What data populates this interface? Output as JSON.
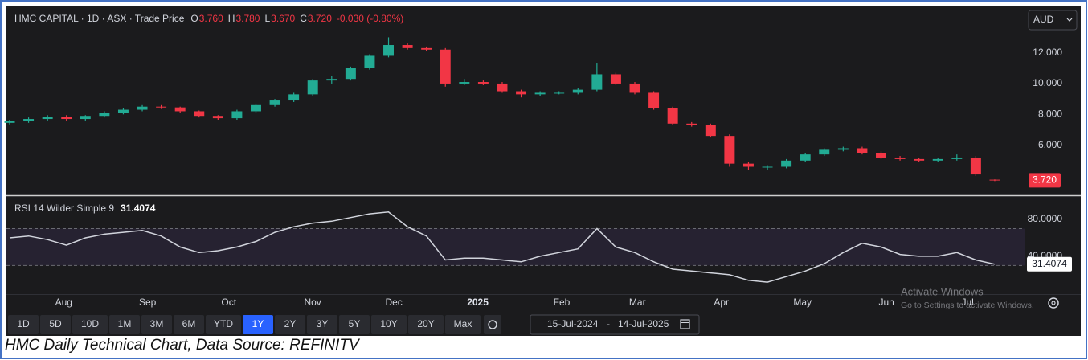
{
  "chart_data": [
    {
      "type": "candlestick",
      "title": "HMC CAPITAL · 1D · ASX · Trade Price",
      "ohlc_legend": [
        {
          "key": "O",
          "value": "3.760"
        },
        {
          "key": "H",
          "value": "3.780"
        },
        {
          "key": "L",
          "value": "3.670"
        },
        {
          "key": "C",
          "value": "3.720"
        }
      ],
      "change": "-0.030 (-0.80%)",
      "currency": "AUD",
      "last_price_label": "3.720",
      "up_color": "#22ab94",
      "down_color": "#f23645",
      "x": [
        "2024-07-15",
        "2024-07-22",
        "2024-07-29",
        "2024-08-05",
        "2024-08-12",
        "2024-08-19",
        "2024-08-26",
        "2024-09-02",
        "2024-09-09",
        "2024-09-16",
        "2024-09-23",
        "2024-09-30",
        "2024-10-07",
        "2024-10-14",
        "2024-10-21",
        "2024-10-28",
        "2024-11-04",
        "2024-11-11",
        "2024-11-18",
        "2024-11-25",
        "2024-12-02",
        "2024-12-09",
        "2024-12-16",
        "2024-12-23",
        "2024-12-30",
        "2025-01-06",
        "2025-01-13",
        "2025-01-20",
        "2025-01-27",
        "2025-02-03",
        "2025-02-10",
        "2025-02-17",
        "2025-02-24",
        "2025-03-03",
        "2025-03-10",
        "2025-03-17",
        "2025-03-24",
        "2025-03-31",
        "2025-04-07",
        "2025-04-14",
        "2025-04-21",
        "2025-04-28",
        "2025-05-05",
        "2025-05-12",
        "2025-05-19",
        "2025-05-26",
        "2025-06-02",
        "2025-06-09",
        "2025-06-16",
        "2025-06-23",
        "2025-06-30",
        "2025-07-07",
        "2025-07-14"
      ],
      "open": [
        7.45,
        7.55,
        7.7,
        7.85,
        7.7,
        7.9,
        8.1,
        8.3,
        8.5,
        8.45,
        8.2,
        7.9,
        7.75,
        8.2,
        8.6,
        8.9,
        9.3,
        10.2,
        10.3,
        11.0,
        11.8,
        12.5,
        12.3,
        12.2,
        10.0,
        10.1,
        10.0,
        9.5,
        9.3,
        9.4,
        9.4,
        9.6,
        10.6,
        10.0,
        9.4,
        8.4,
        7.4,
        7.3,
        6.6,
        4.8,
        4.6,
        4.6,
        5.0,
        5.4,
        5.7,
        5.8,
        5.5,
        5.2,
        5.1,
        5.0,
        5.1,
        5.2,
        3.76
      ],
      "high": [
        7.65,
        7.8,
        7.95,
        7.95,
        7.95,
        8.2,
        8.4,
        8.6,
        8.6,
        8.5,
        8.25,
        7.95,
        8.3,
        8.7,
        9.0,
        9.4,
        10.3,
        10.5,
        11.1,
        11.9,
        13.0,
        12.6,
        12.4,
        12.3,
        10.3,
        10.2,
        10.1,
        9.6,
        9.5,
        9.5,
        9.7,
        11.3,
        10.7,
        10.1,
        9.5,
        8.5,
        7.5,
        7.4,
        6.7,
        4.9,
        4.7,
        5.1,
        5.5,
        5.8,
        5.9,
        5.9,
        5.6,
        5.3,
        5.2,
        5.2,
        5.4,
        5.3,
        3.78
      ],
      "low": [
        7.35,
        7.45,
        7.6,
        7.6,
        7.6,
        7.8,
        8.0,
        8.2,
        8.35,
        8.1,
        7.8,
        7.65,
        7.65,
        8.1,
        8.5,
        8.8,
        9.2,
        10.0,
        10.2,
        10.9,
        11.7,
        12.2,
        12.1,
        9.8,
        9.9,
        9.9,
        9.4,
        9.1,
        9.2,
        9.3,
        9.3,
        9.5,
        9.9,
        9.3,
        8.3,
        7.3,
        7.2,
        6.5,
        4.6,
        4.4,
        4.4,
        4.5,
        4.9,
        5.3,
        5.6,
        5.4,
        5.1,
        5.0,
        4.9,
        4.9,
        5.0,
        4.0,
        3.67
      ],
      "close": [
        7.55,
        7.7,
        7.85,
        7.7,
        7.9,
        8.1,
        8.3,
        8.5,
        8.45,
        8.2,
        7.9,
        7.75,
        8.2,
        8.6,
        8.9,
        9.3,
        10.2,
        10.3,
        11.0,
        11.8,
        12.5,
        12.3,
        12.2,
        10.0,
        10.1,
        10.0,
        9.5,
        9.3,
        9.4,
        9.4,
        9.6,
        10.6,
        10.0,
        9.4,
        8.4,
        7.4,
        7.3,
        6.6,
        4.8,
        4.6,
        4.6,
        5.0,
        5.4,
        5.7,
        5.8,
        5.5,
        5.2,
        5.1,
        5.0,
        5.1,
        5.2,
        4.1,
        3.72
      ],
      "xlim": [
        "2024-07-15",
        "2025-07-25"
      ],
      "ylim": [
        2.8,
        14.9
      ],
      "yticks": [
        {
          "value": 6,
          "label": "6.000"
        },
        {
          "value": 8,
          "label": "8.000"
        },
        {
          "value": 10,
          "label": "10.000"
        },
        {
          "value": 12,
          "label": "12.000"
        }
      ],
      "grid": false
    },
    {
      "type": "line",
      "title": "RSI 14 Wilder Simple 9",
      "x": [
        "2024-07-15",
        "2024-07-22",
        "2024-07-29",
        "2024-08-05",
        "2024-08-12",
        "2024-08-19",
        "2024-08-26",
        "2024-09-02",
        "2024-09-09",
        "2024-09-16",
        "2024-09-23",
        "2024-09-30",
        "2024-10-07",
        "2024-10-14",
        "2024-10-21",
        "2024-10-28",
        "2024-11-04",
        "2024-11-11",
        "2024-11-18",
        "2024-11-25",
        "2024-12-02",
        "2024-12-09",
        "2024-12-16",
        "2024-12-23",
        "2024-12-30",
        "2025-01-06",
        "2025-01-13",
        "2025-01-20",
        "2025-01-27",
        "2025-02-03",
        "2025-02-10",
        "2025-02-17",
        "2025-02-24",
        "2025-03-03",
        "2025-03-10",
        "2025-03-17",
        "2025-03-24",
        "2025-03-31",
        "2025-04-07",
        "2025-04-14",
        "2025-04-21",
        "2025-04-28",
        "2025-05-05",
        "2025-05-12",
        "2025-05-19",
        "2025-05-26",
        "2025-06-02",
        "2025-06-09",
        "2025-06-16",
        "2025-06-23",
        "2025-06-30",
        "2025-07-07",
        "2025-07-14"
      ],
      "series": [
        {
          "name": "RSI",
          "color": "#d1d4dc",
          "values": [
            60,
            62,
            58,
            52,
            60,
            64,
            66,
            68,
            62,
            50,
            44,
            46,
            50,
            56,
            66,
            72,
            76,
            78,
            82,
            86,
            88,
            72,
            62,
            36,
            38,
            38,
            36,
            34,
            40,
            44,
            48,
            70,
            50,
            44,
            34,
            26,
            24,
            22,
            20,
            14,
            12,
            18,
            24,
            32,
            44,
            54,
            50,
            42,
            40,
            40,
            44,
            36,
            31.4074
          ]
        }
      ],
      "bands": [
        70,
        30
      ],
      "band_color": "#7e57c2",
      "xlim": [
        "2024-07-15",
        "2025-07-25"
      ],
      "ylim": [
        -1,
        103.5
      ],
      "yticks": [
        {
          "value": 40,
          "label": "40.0000"
        },
        {
          "value": 80,
          "label": "80.0000"
        }
      ],
      "xticks": [
        {
          "value": "2024-08-01",
          "label": "Aug"
        },
        {
          "value": "2024-09-01",
          "label": "Sep"
        },
        {
          "value": "2024-10-01",
          "label": "Oct"
        },
        {
          "value": "2024-11-01",
          "label": "Nov"
        },
        {
          "value": "2024-12-01",
          "label": "Dec"
        },
        {
          "value": "2025-01-01",
          "label": "2025"
        },
        {
          "value": "2025-02-01",
          "label": "Feb"
        },
        {
          "value": "2025-03-01",
          "label": "Mar"
        },
        {
          "value": "2025-04-01",
          "label": "Apr"
        },
        {
          "value": "2025-05-01",
          "label": "May"
        },
        {
          "value": "2025-06-01",
          "label": "Jun"
        },
        {
          "value": "2025-07-01",
          "label": "Jul"
        }
      ],
      "grid": false
    }
  ],
  "ui": {
    "ranges": [
      "1D",
      "5D",
      "10D",
      "1M",
      "3M",
      "6M",
      "YTD",
      "1Y",
      "2Y",
      "3Y",
      "5Y",
      "10Y",
      "20Y",
      "Max"
    ],
    "selected_range": 7,
    "date_range": {
      "from": "15-Jul-2024",
      "separator": "-",
      "to": "14-Jul-2025"
    },
    "watermark": [
      "Activate Windows",
      "Go to Settings to activate Windows."
    ],
    "caption": "HMC Daily Technical Chart, Data Source: REFINITV"
  }
}
